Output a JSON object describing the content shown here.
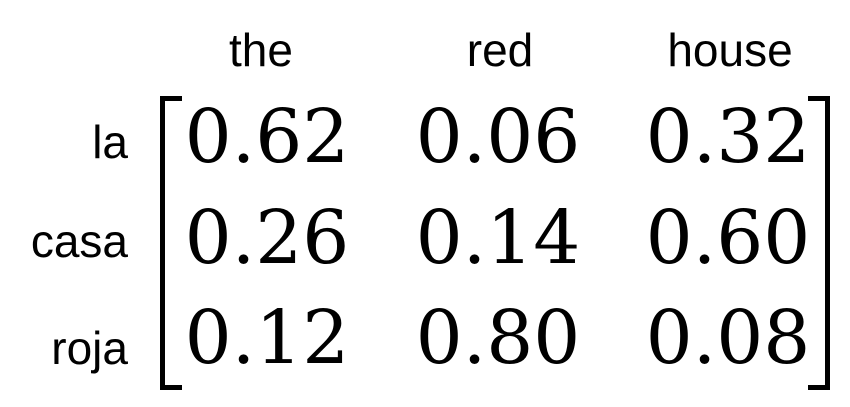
{
  "matrix": {
    "column_headers": [
      "the",
      "red",
      "house"
    ],
    "row_labels": [
      "la",
      "casa",
      "roja"
    ],
    "rows": [
      [
        "0.62",
        "0.06",
        "0.32"
      ],
      [
        "0.26",
        "0.14",
        "0.60"
      ],
      [
        "0.12",
        "0.80",
        "0.08"
      ]
    ]
  },
  "colors": {
    "text": "#000000",
    "background": "#ffffff"
  }
}
